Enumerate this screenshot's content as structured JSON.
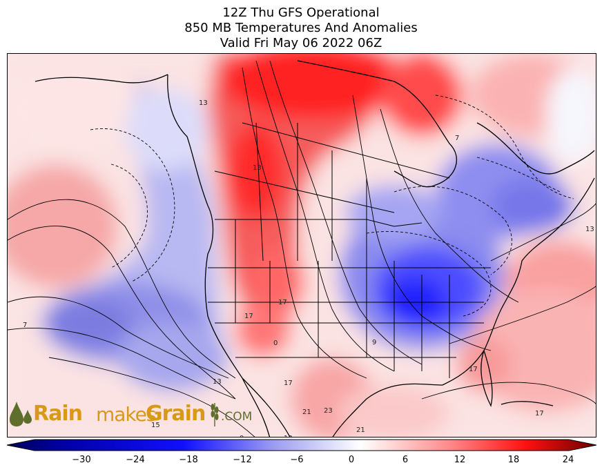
{
  "title": {
    "line1": "12Z Thu GFS Operational",
    "line2": "850 MB Temperatures And Anomalies",
    "line3": "Valid Fri May 06 2022 06Z"
  },
  "colorbar": {
    "ticks": [
      "−30",
      "−24",
      "−18",
      "−12",
      "−6",
      "0",
      "6",
      "12",
      "18",
      "24"
    ],
    "min": -36,
    "max": 24,
    "colors": {
      "cold_extreme": "#00005a",
      "cold": "#1010ff",
      "neutral": "#ffffff",
      "warm": "#ff1010",
      "warm_extreme": "#6a0000"
    }
  },
  "contour_labels": [
    "13",
    "13",
    "7",
    "13",
    "17",
    "17",
    "0",
    "17",
    "21",
    "23",
    "21",
    "13",
    "15",
    "9",
    "17",
    "9",
    "7",
    "17",
    "13"
  ],
  "logo": {
    "rain": "Rain",
    "makes": "makes",
    "grain": "Grain",
    "com": ".COM",
    "colors": {
      "gold": "#d89a14",
      "olive": "#5e6e2d"
    }
  }
}
